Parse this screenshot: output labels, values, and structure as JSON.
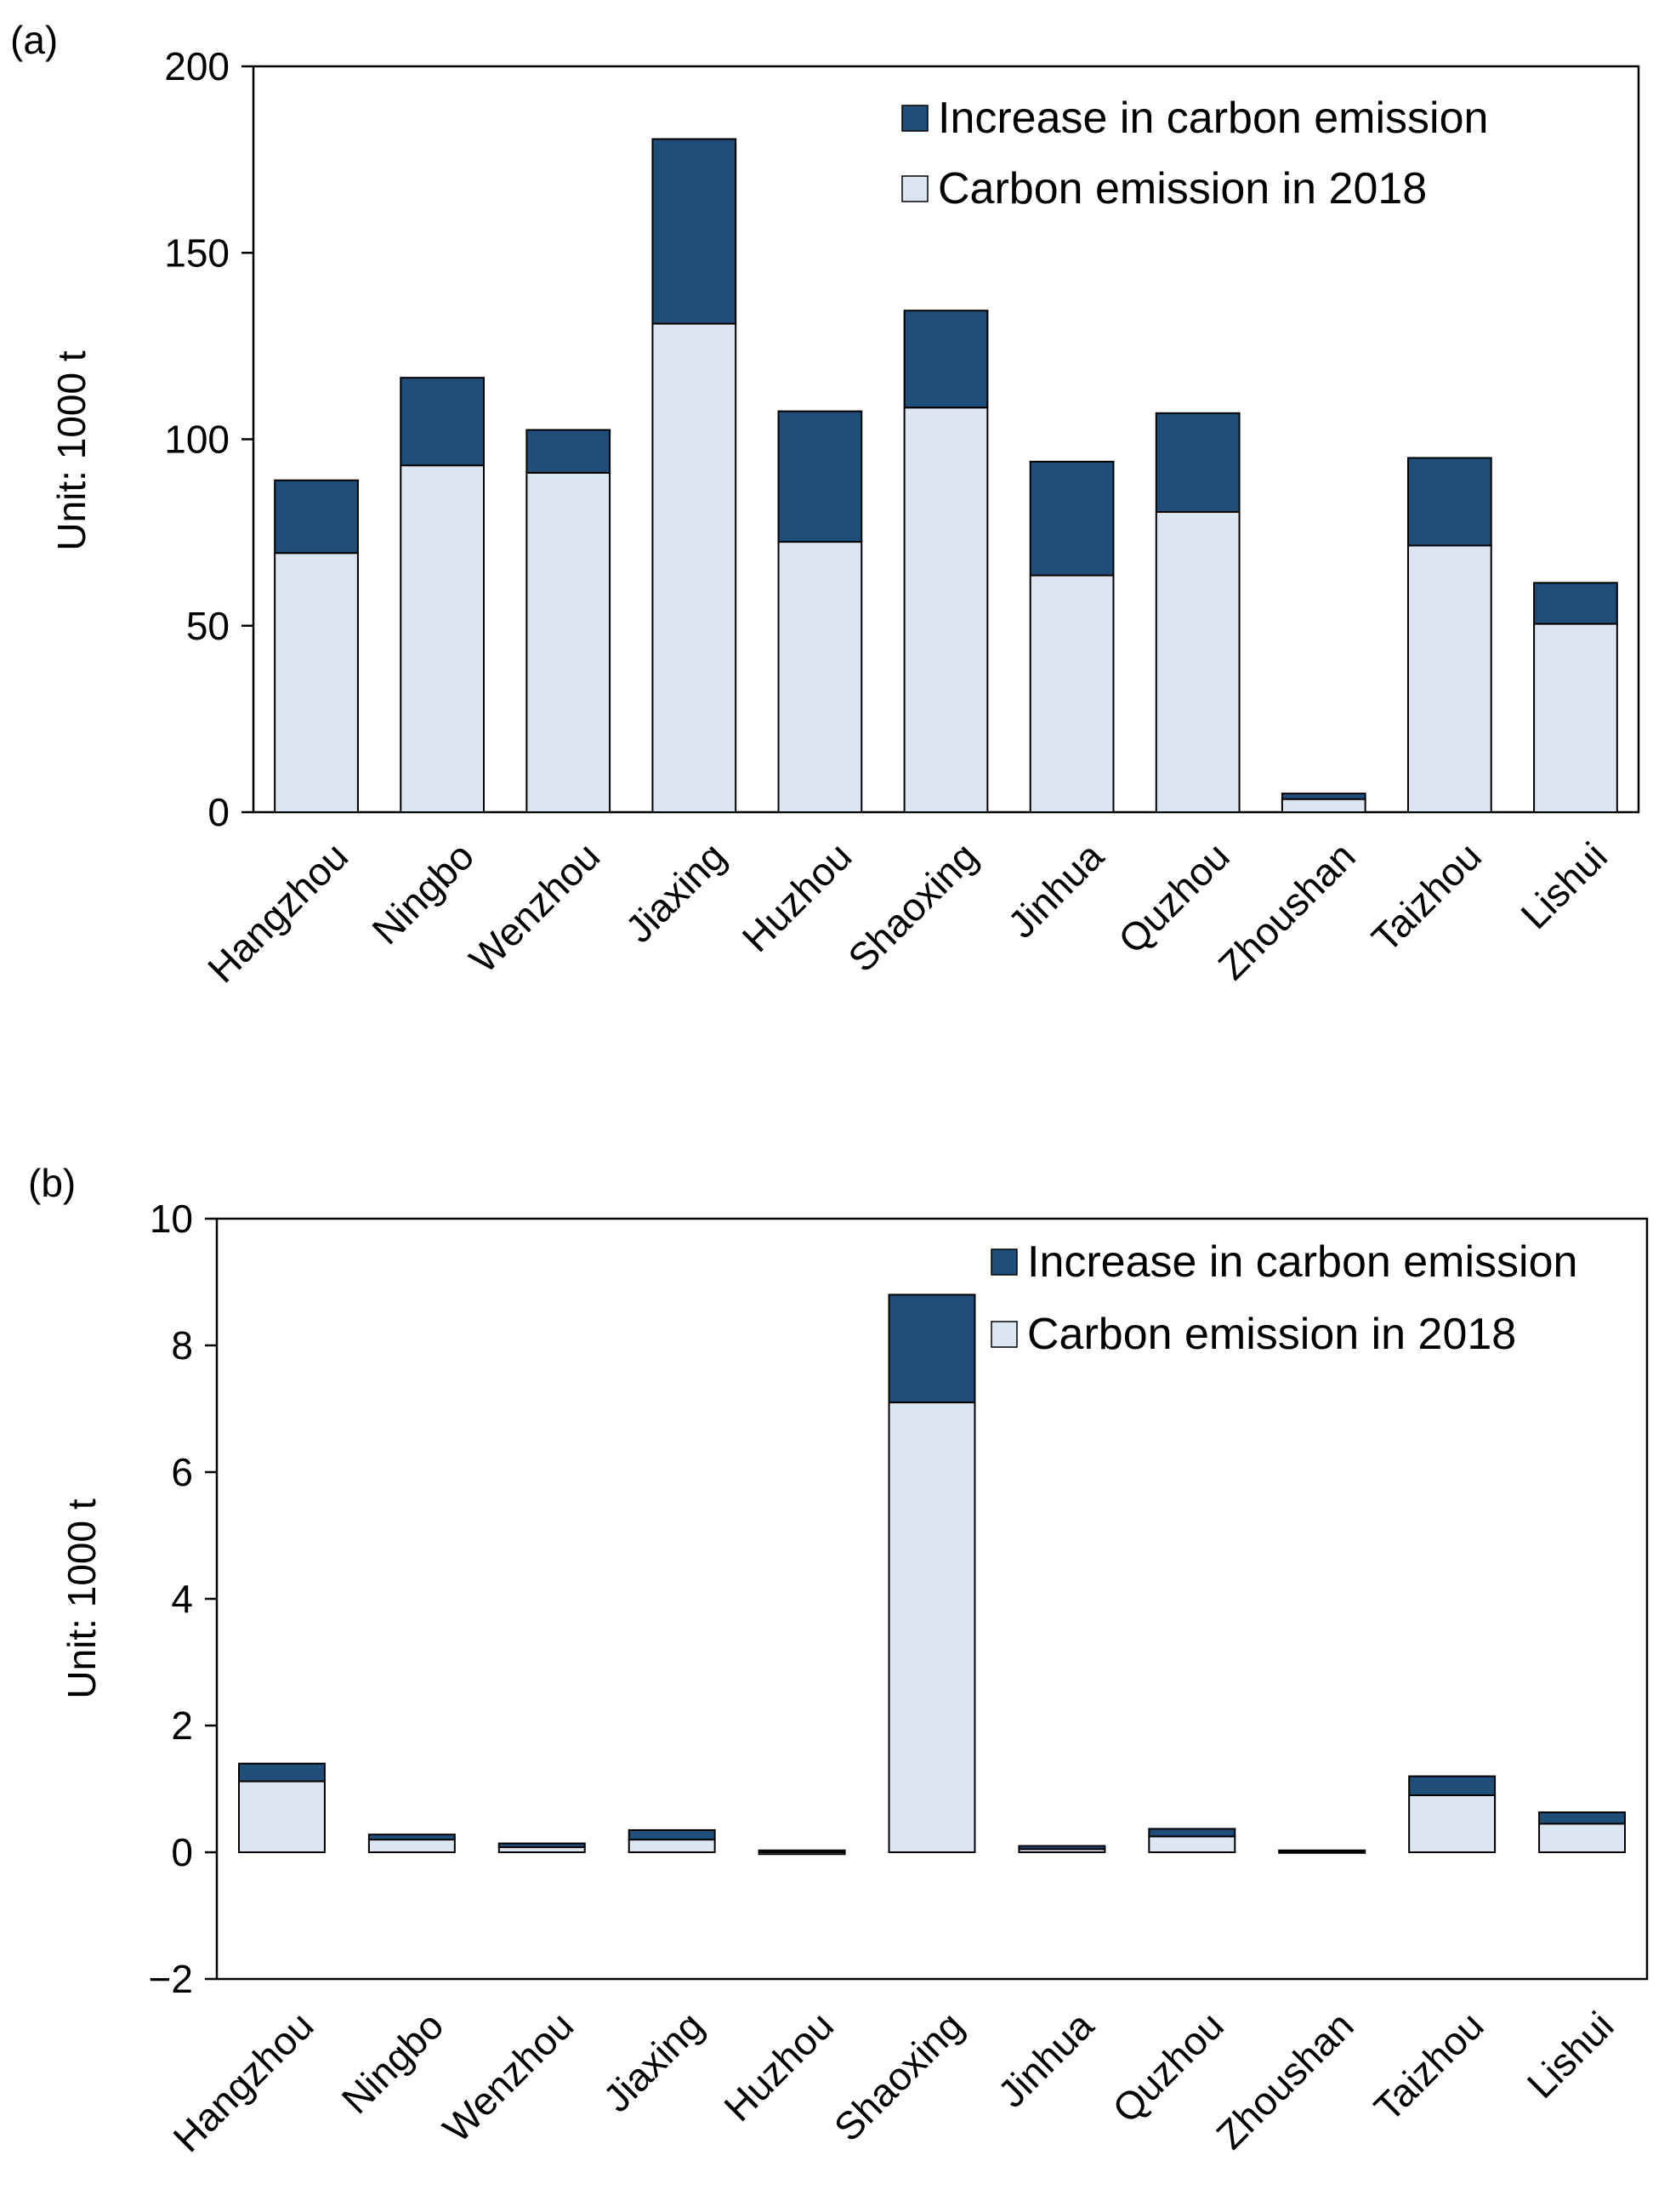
{
  "chart_data": [
    {
      "panel_label": "(a)",
      "type": "bar",
      "stacked": true,
      "ylabel": "Unit:  1000 t",
      "ylim": [
        0,
        200
      ],
      "yticks": [
        0,
        50,
        100,
        150,
        200
      ],
      "ytick_labels": [
        "0",
        "50",
        "100",
        "150",
        "200"
      ],
      "legend_position": "top-right",
      "categories": [
        "Hangzhou",
        "Ningbo",
        "Wenzhou",
        "Jiaxing",
        "Huzhou",
        "Shaoxing",
        "Jinhua",
        "Quzhou",
        "Zhoushan",
        "Taizhou",
        "Lishui"
      ],
      "series": [
        {
          "name": "Carbon emission in 2018",
          "color": "#dce6f2",
          "values": [
            69.5,
            93,
            91,
            131,
            72.5,
            108.5,
            63.5,
            80.5,
            3.5,
            71.5,
            50.5
          ]
        },
        {
          "name": "Increase in carbon emission",
          "color": "#1f4e79",
          "values": [
            19.5,
            23.5,
            11.5,
            49.5,
            35,
            26,
            30.5,
            26.5,
            1.5,
            23.5,
            11
          ]
        }
      ]
    },
    {
      "panel_label": "(b)",
      "type": "bar",
      "stacked": true,
      "ylabel": "Unit:  1000 t",
      "ylim": [
        -2,
        10
      ],
      "yticks": [
        -2,
        0,
        2,
        4,
        6,
        8,
        10
      ],
      "ytick_labels": [
        "−2",
        "0",
        "2",
        "4",
        "6",
        "8",
        "10"
      ],
      "legend_position": "top-right",
      "categories": [
        "Hangzhou",
        "Ningbo",
        "Wenzhou",
        "Jiaxing",
        "Huzhou",
        "Shaoxing",
        "Jinhua",
        "Quzhou",
        "Zhoushan",
        "Taizhou",
        "Lishui"
      ],
      "series": [
        {
          "name": "Carbon emission in 2018",
          "color": "#dce6f2",
          "values": [
            1.12,
            0.2,
            0.08,
            0.2,
            -0.03,
            7.1,
            0.05,
            0.25,
            0.01,
            0.9,
            0.45
          ]
        },
        {
          "name": "Increase in carbon emission",
          "color": "#1f4e79",
          "values": [
            0.28,
            0.08,
            0.06,
            0.15,
            0.03,
            1.7,
            0.05,
            0.12,
            0.02,
            0.3,
            0.18
          ]
        }
      ]
    }
  ]
}
